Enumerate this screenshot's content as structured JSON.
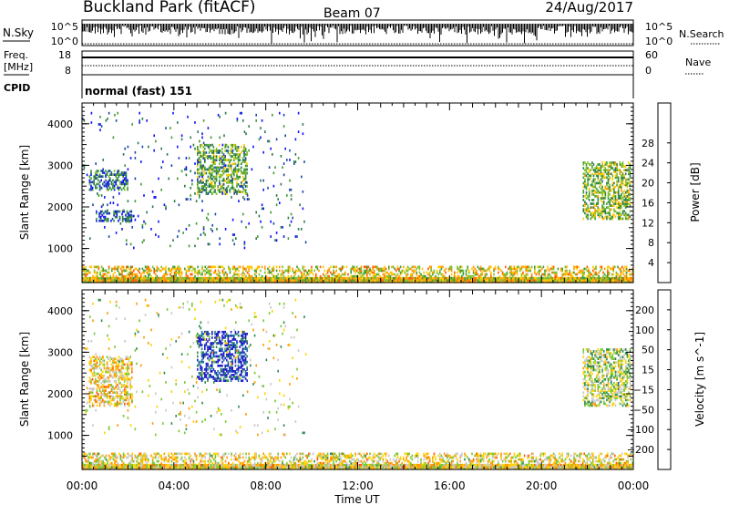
{
  "header": {
    "station": "Buckland Park (fitACF)",
    "beam": "Beam 07",
    "date": "24/Aug/2017"
  },
  "noise_panel": {
    "left_label": "N.Sky",
    "right_label": "N.Search",
    "left_ticks": [
      "10^5",
      "10^0"
    ],
    "right_ticks": [
      "10^5",
      "10^0"
    ]
  },
  "freq_panel": {
    "left_label_line1": "Freq.",
    "left_label_line2": "[MHz]",
    "right_label": "Nave",
    "left_ticks": [
      "18",
      "8"
    ],
    "right_ticks": [
      "60",
      "0"
    ]
  },
  "cpid": {
    "label": "CPID",
    "value": "normal (fast) 151"
  },
  "x_axis": {
    "label": "Time UT",
    "ticks": [
      "00:00",
      "04:00",
      "08:00",
      "12:00",
      "16:00",
      "20:00",
      "00:00"
    ],
    "range_hours": [
      0,
      24
    ]
  },
  "chart_data": [
    {
      "type": "heatmap",
      "title": "",
      "xlabel": "",
      "ylabel": "Slant Range [km]",
      "xlim": [
        0,
        24
      ],
      "ylim": [
        180,
        4500
      ],
      "yticks": [
        "1000",
        "2000",
        "3000",
        "4000"
      ],
      "colorbar": {
        "label": "Power [dB]",
        "ticks": [
          "4",
          "8",
          "12",
          "16",
          "20",
          "24",
          "28"
        ],
        "range": [
          0,
          30
        ],
        "colors": [
          "#1010ff",
          "#1a46a8",
          "#2a7a4a",
          "#3f9a30",
          "#7fbf2a",
          "#ffc800",
          "#ff9a00",
          "#ff5a00",
          "#ff0000"
        ]
      },
      "regions": [
        {
          "t": [
            0.3,
            2.0
          ],
          "range_km": [
            2400,
            2900
          ],
          "value": 8
        },
        {
          "t": [
            0.6,
            2.2
          ],
          "range_km": [
            1650,
            1900
          ],
          "value": 6
        },
        {
          "t": [
            5.0,
            7.2
          ],
          "range_km": [
            2300,
            3500
          ],
          "value": 12
        },
        {
          "t": [
            0.0,
            9.8
          ],
          "range_km": [
            1000,
            4300
          ],
          "value": 6
        },
        {
          "t": [
            21.8,
            23.9
          ],
          "range_km": [
            1700,
            3100
          ],
          "value": 14
        },
        {
          "t": [
            0.0,
            24.0
          ],
          "range_km": [
            180,
            600
          ],
          "value": 18
        }
      ]
    },
    {
      "type": "heatmap",
      "title": "",
      "xlabel": "Time UT",
      "ylabel": "Slant Range [km]",
      "xlim": [
        0,
        24
      ],
      "ylim": [
        180,
        4500
      ],
      "yticks": [
        "1000",
        "2000",
        "3000",
        "4000"
      ],
      "colorbar": {
        "label": "Velocity [m s^-1]",
        "ticks": [
          "200",
          "100",
          "50",
          "15",
          "−15",
          "−50",
          "−100",
          "−200"
        ],
        "range": [
          -250,
          250
        ],
        "colors": [
          "#1e1ec8",
          "#1c6cac",
          "#2a8a50",
          "#78c832",
          "#c8c8c8",
          "#ffd200",
          "#ff9a00",
          "#ff5a00",
          "#ff0000"
        ]
      },
      "regions": [
        {
          "t": [
            0.3,
            2.2
          ],
          "range_km": [
            1700,
            2900
          ],
          "value": -40
        },
        {
          "t": [
            5.0,
            7.2
          ],
          "range_km": [
            2300,
            3500
          ],
          "value": 220
        },
        {
          "t": [
            0.0,
            9.8
          ],
          "range_km": [
            1000,
            4300
          ],
          "value": 0
        },
        {
          "t": [
            21.8,
            23.9
          ],
          "range_km": [
            1700,
            3100
          ],
          "value": 20
        },
        {
          "t": [
            0.0,
            24.0
          ],
          "range_km": [
            180,
            600
          ],
          "value": -30
        }
      ]
    }
  ]
}
